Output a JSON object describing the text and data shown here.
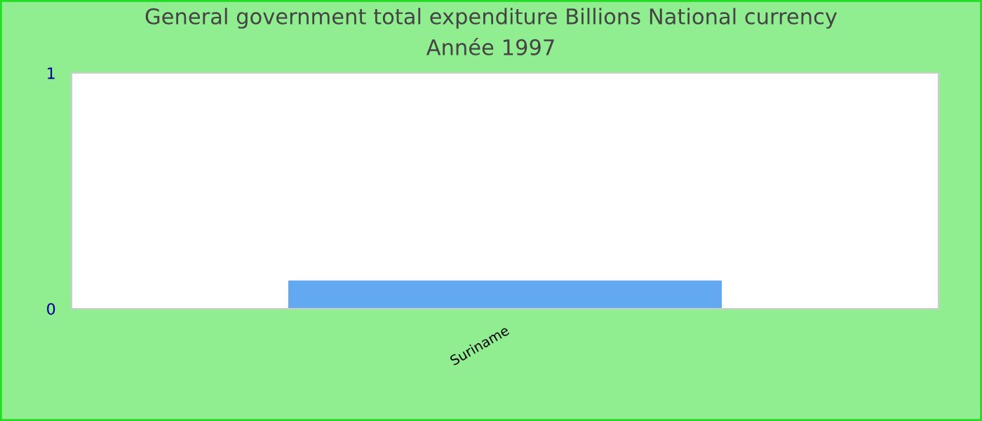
{
  "chart_data": {
    "type": "bar",
    "title": "General government total expenditure Billions National currency",
    "subtitle": "Année 1997",
    "categories": [
      "Suriname"
    ],
    "values": [
      0.12
    ],
    "color": "#62a9f2",
    "ylim": [
      0,
      1
    ],
    "yticks": [
      0,
      1
    ],
    "grid": false,
    "legend": false
  }
}
